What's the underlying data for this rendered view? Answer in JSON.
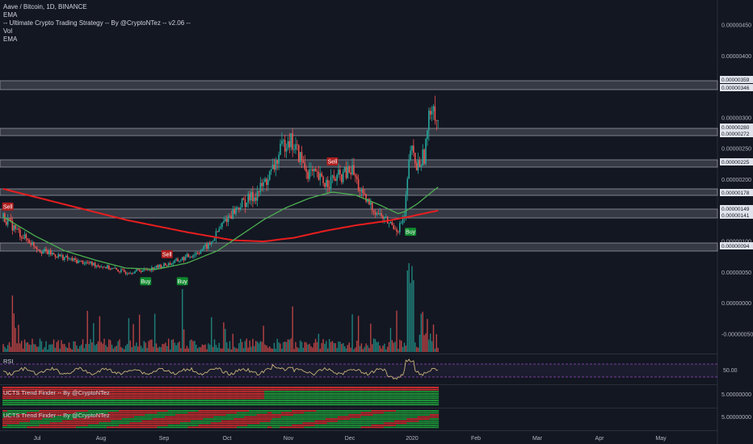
{
  "header": {
    "title": "Aave / Bitcoin, 1D, BINANCE",
    "indicators": [
      "EMA",
      "-- Ultimate Crypto Trading Strategy -- By @CryptoNTez -- v2.06 --",
      "Vol",
      "EMA"
    ]
  },
  "panes": {
    "rsi_label": "RSI",
    "trend1_label": "UCTS Trend Finder -- By @CryptoNTez",
    "trend2_label": "UCTS Trend Finder -- By @CryptoNTez"
  },
  "colors": {
    "background": "#131722",
    "up": "#26a69a",
    "down": "#ef5350",
    "ema_fast": "#4caf50",
    "ema_slow": "#e91e1e",
    "rsi_line": "#c9b37a",
    "rsi_band": "#9c4cc2",
    "buy": "#0f8a2e",
    "sell": "#b01e1e",
    "level_box": "#5d606b"
  },
  "chart_data": {
    "type": "candlestick",
    "title": "Aave / Bitcoin, 1D, BINANCE",
    "x_ticks": [
      "Jul",
      "Aug",
      "Sep",
      "Oct",
      "Nov",
      "Dec",
      "2020",
      "Feb",
      "Mar",
      "Apr",
      "May"
    ],
    "y_ticks": [
      "0.00000450",
      "0.00000400",
      "0.00000350",
      "0.00000300",
      "0.00000250",
      "0.00000200",
      "0.00000150",
      "0.00000100",
      "0.00000050",
      "0.00000000",
      "-0.00000050"
    ],
    "level_labels": [
      "0.00000359",
      "0.00000346",
      "0.00000280",
      "0.00000272",
      "0.00000225",
      "0.00000178",
      "0.00000149",
      "0.00000141",
      "0.00000094"
    ],
    "price_ylim": [
      -7e-07,
      4.8e-06
    ],
    "price_curve": [
      [
        0,
        1.4e-06
      ],
      [
        12,
        1.1e-06
      ],
      [
        25,
        8.5e-07
      ],
      [
        45,
        7e-07
      ],
      [
        65,
        6e-07
      ],
      [
        80,
        5e-07
      ],
      [
        95,
        5.5e-07
      ],
      [
        110,
        6.5e-07
      ],
      [
        125,
        8e-07
      ],
      [
        135,
        9.5e-07
      ],
      [
        145,
        1.35e-06
      ],
      [
        155,
        1.6e-06
      ],
      [
        165,
        1.75e-06
      ],
      [
        175,
        2.1e-06
      ],
      [
        182,
        2.5e-06
      ],
      [
        186,
        2.7e-06
      ],
      [
        192,
        2.45e-06
      ],
      [
        198,
        2.15e-06
      ],
      [
        210,
        1.95e-06
      ],
      [
        220,
        2.05e-06
      ],
      [
        228,
        2.15e-06
      ],
      [
        235,
        1.7e-06
      ],
      [
        245,
        1.45e-06
      ],
      [
        252,
        1.3e-06
      ],
      [
        258,
        1.2e-06
      ],
      [
        262,
        1.4e-06
      ],
      [
        266,
        2.5e-06
      ],
      [
        270,
        2.2e-06
      ],
      [
        275,
        2.4e-06
      ],
      [
        280,
        3.3e-06
      ],
      [
        284,
        2.9e-06
      ]
    ],
    "ema_fast": [
      [
        0,
        1.4e-06
      ],
      [
        20,
        1.1e-06
      ],
      [
        40,
        8.5e-07
      ],
      [
        60,
        7e-07
      ],
      [
        80,
        5.7e-07
      ],
      [
        100,
        5.5e-07
      ],
      [
        120,
        6.5e-07
      ],
      [
        140,
        8.5e-07
      ],
      [
        155,
        1.1e-06
      ],
      [
        170,
        1.35e-06
      ],
      [
        185,
        1.55e-06
      ],
      [
        200,
        1.7e-06
      ],
      [
        215,
        1.8e-06
      ],
      [
        230,
        1.75e-06
      ],
      [
        245,
        1.6e-06
      ],
      [
        258,
        1.45e-06
      ],
      [
        262,
        1.48e-06
      ],
      [
        270,
        1.6e-06
      ],
      [
        280,
        1.8e-06
      ],
      [
        284,
        1.88e-06
      ]
    ],
    "ema_slow": [
      [
        0,
        1.85e-06
      ],
      [
        40,
        1.6e-06
      ],
      [
        80,
        1.35e-06
      ],
      [
        120,
        1.15e-06
      ],
      [
        150,
        1.02e-06
      ],
      [
        170,
        1e-06
      ],
      [
        190,
        1.06e-06
      ],
      [
        210,
        1.17e-06
      ],
      [
        230,
        1.26e-06
      ],
      [
        250,
        1.33e-06
      ],
      [
        265,
        1.4e-06
      ],
      [
        284,
        1.5e-06
      ]
    ],
    "signals": [
      {
        "label": "Sell",
        "day": 3,
        "price": 1.42e-06,
        "side": "sell"
      },
      {
        "label": "Buy",
        "day": 93,
        "price": 5e-07,
        "side": "buy"
      },
      {
        "label": "Sell",
        "day": 107,
        "price": 6.5e-07,
        "side": "sell"
      },
      {
        "label": "Buy",
        "day": 117,
        "price": 5e-07,
        "side": "buy"
      },
      {
        "label": "Sell",
        "day": 215,
        "price": 2.15e-06,
        "side": "sell"
      },
      {
        "label": "Buy",
        "day": 266,
        "price": 1.3e-06,
        "side": "buy"
      }
    ],
    "rsi_ticks": [
      "50.00"
    ],
    "trend_ticks": [
      "5.00000000",
      "5.00000000"
    ]
  }
}
